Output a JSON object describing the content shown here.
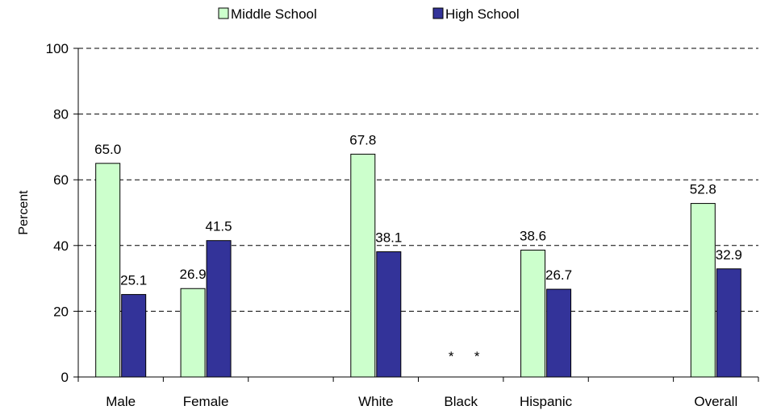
{
  "chart_data": {
    "type": "bar",
    "title": "",
    "xlabel": "",
    "ylabel": "Percent",
    "ylim": [
      0,
      100
    ],
    "yticks": [
      0,
      20,
      40,
      60,
      80,
      100
    ],
    "grid": true,
    "legend_position": "top",
    "categories": [
      "Male",
      "Female",
      "",
      "White",
      "Black",
      "Hispanic",
      "",
      "Overall"
    ],
    "series": [
      {
        "name": "Middle School",
        "color": "#ccffcc",
        "values": [
          65.0,
          26.9,
          null,
          67.8,
          null,
          38.6,
          null,
          52.8
        ],
        "labels": [
          "65.0",
          "26.9",
          "",
          "67.8",
          "*",
          "38.6",
          "",
          "52.8"
        ]
      },
      {
        "name": "High School",
        "color": "#333399",
        "values": [
          25.1,
          41.5,
          null,
          38.1,
          null,
          26.7,
          null,
          32.9
        ],
        "labels": [
          "25.1",
          "41.5",
          "",
          "38.1",
          "*",
          "26.7",
          "",
          "32.9"
        ]
      }
    ]
  }
}
